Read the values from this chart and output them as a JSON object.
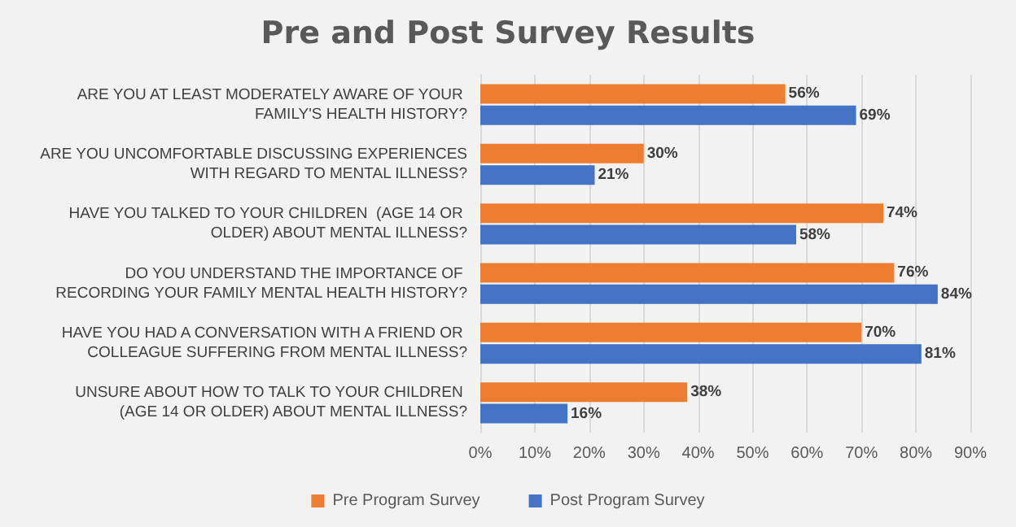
{
  "chart_data": {
    "type": "bar",
    "orientation": "horizontal",
    "title": "Pre and Post Survey Results",
    "categories": [
      "ARE YOU AT LEAST MODERATELY AWARE OF YOUR FAMILY'S HEALTH HISTORY?",
      "ARE YOU UNCOMFORTABLE DISCUSSING EXPERIENCES WITH REGARD TO MENTAL ILLNESS?",
      "HAVE YOU TALKED TO YOUR CHILDREN  (AGE 14 OR OLDER) ABOUT MENTAL ILLNESS?",
      "DO YOU UNDERSTAND THE IMPORTANCE OF RECORDING YOUR FAMILY MENTAL HEALTH HISTORY?",
      "HAVE YOU HAD A CONVERSATION WITH A FRIEND OR COLLEAGUE SUFFERING FROM MENTAL ILLNESS?",
      "UNSURE ABOUT HOW TO TALK TO YOUR CHILDREN (AGE 14 OR OLDER) ABOUT MENTAL ILLNESS?"
    ],
    "series": [
      {
        "name": "Pre Program Survey",
        "color": "#ed7d31",
        "values": [
          56,
          30,
          74,
          76,
          70,
          38
        ],
        "value_labels": [
          "56%",
          "30%",
          "74%",
          "76%",
          "70%",
          "38%"
        ]
      },
      {
        "name": "Post Program Survey",
        "color": "#4472c4",
        "values": [
          69,
          21,
          58,
          84,
          81,
          16
        ],
        "value_labels": [
          "69%",
          "21%",
          "58%",
          "84%",
          "81%",
          "16%"
        ]
      }
    ],
    "xlim": [
      0,
      90
    ],
    "xticks": [
      {
        "value": 0,
        "label": "0%"
      },
      {
        "value": 10,
        "label": "10%"
      },
      {
        "value": 20,
        "label": "20%"
      },
      {
        "value": 30,
        "label": "30%"
      },
      {
        "value": 40,
        "label": "40%"
      },
      {
        "value": 50,
        "label": "50%"
      },
      {
        "value": 60,
        "label": "60%"
      },
      {
        "value": 70,
        "label": "70%"
      },
      {
        "value": 80,
        "label": "80%"
      },
      {
        "value": 90,
        "label": "90%"
      }
    ],
    "grid": "x",
    "legend": "bottom"
  }
}
